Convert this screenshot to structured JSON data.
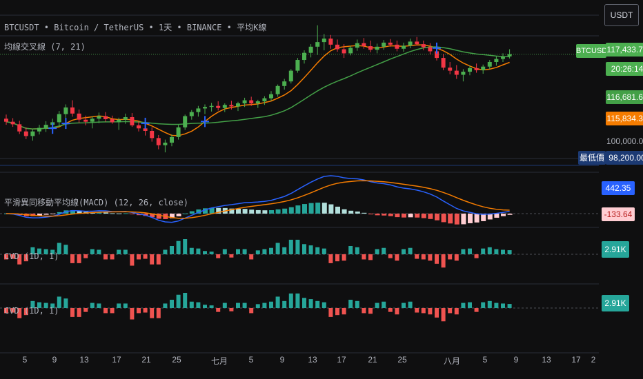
{
  "header": {
    "symbol_line": "BTCUSDT • Bitcoin / TetherUS • 1天 • BINANCE • 平均K線",
    "ma_label": "均線交叉線 (7, 21)",
    "macd_label": "平滑異同移動平均線(MACD) (12, 26, close)",
    "cvd1_label": "CVD (1D, 1)",
    "cvd2_label": "CVD (1D, 1)"
  },
  "right_scale": {
    "currency_button": "USDT",
    "symbol_tag": "BTCUSDT",
    "last_price": "117,433.72",
    "countdown": "20:26:14",
    "ma_green_value": "116,681.67",
    "ma_orange_value": "115,834.36",
    "partial_label": "100,000.00",
    "lowest_label": "最低價",
    "lowest_value": "98,200.00",
    "macd_value": "442.35",
    "hist_value": "-133.64",
    "cvd1_value": "2.91K",
    "cvd2_value": "2.91K"
  },
  "time_axis": {
    "ticks": [
      "5",
      "9",
      "13",
      "17",
      "21",
      "25",
      "七月",
      "5",
      "9",
      "13",
      "17",
      "21",
      "25",
      "八月",
      "5",
      "9",
      "13",
      "17",
      "2"
    ]
  },
  "colors": {
    "up": "#4caf50",
    "down": "#f23645",
    "ma_fast": "#f57c00",
    "ma_slow": "#43a047",
    "macd": "#2962ff",
    "signal": "#f57c00",
    "hist_up": "#26a69a",
    "hist_down": "#ef5350",
    "cross": "#2962ff",
    "lowest_bg": "#1c3a73"
  },
  "chart_data": {
    "type": "candlestick",
    "symbol": "BTCUSDT",
    "interval": "1天",
    "price_ohlc": [
      [
        104800,
        105600,
        103600,
        104200
      ],
      [
        104200,
        104900,
        103200,
        103700
      ],
      [
        103700,
        104400,
        101800,
        102300
      ],
      [
        102300,
        103100,
        100800,
        101400
      ],
      [
        101400,
        102700,
        100500,
        102300
      ],
      [
        102300,
        103600,
        101700,
        103000
      ],
      [
        103000,
        104300,
        102200,
        103600
      ],
      [
        103600,
        104800,
        102800,
        104100
      ],
      [
        104100,
        106300,
        103400,
        105700
      ],
      [
        105700,
        107600,
        104900,
        107000
      ],
      [
        107000,
        108400,
        105200,
        105800
      ],
      [
        105800,
        106600,
        104000,
        104600
      ],
      [
        104600,
        105400,
        103500,
        104200
      ],
      [
        104200,
        105300,
        102900,
        104800
      ],
      [
        104800,
        106000,
        103900,
        105300
      ],
      [
        105300,
        106100,
        104200,
        104700
      ],
      [
        104700,
        105400,
        103800,
        104100
      ],
      [
        104100,
        105000,
        102600,
        104600
      ],
      [
        104600,
        105800,
        103800,
        105100
      ],
      [
        105100,
        105900,
        103200,
        103500
      ],
      [
        103500,
        104200,
        102300,
        102900
      ],
      [
        102900,
        103700,
        101500,
        102400
      ],
      [
        102400,
        103100,
        100300,
        101000
      ],
      [
        101000,
        101600,
        98800,
        99600
      ],
      [
        99600,
        100700,
        98200,
        100100
      ],
      [
        100100,
        101700,
        99400,
        101200
      ],
      [
        101200,
        103600,
        100700,
        103100
      ],
      [
        103100,
        105600,
        102600,
        105300
      ],
      [
        105300,
        106500,
        104600,
        106100
      ],
      [
        106100,
        107300,
        105200,
        106800
      ],
      [
        106800,
        107600,
        105700,
        107100
      ],
      [
        107100,
        107900,
        106200,
        107300
      ],
      [
        107300,
        108200,
        106400,
        106900
      ],
      [
        106900,
        107800,
        106100,
        107500
      ],
      [
        107500,
        108300,
        106600,
        107200
      ],
      [
        107200,
        108100,
        106300,
        107800
      ],
      [
        107800,
        108900,
        107100,
        108400
      ],
      [
        108400,
        109100,
        107300,
        107800
      ],
      [
        107800,
        108500,
        106900,
        108200
      ],
      [
        108200,
        109200,
        107500,
        108800
      ],
      [
        108800,
        110200,
        108300,
        109600
      ],
      [
        109600,
        111500,
        109100,
        111200
      ],
      [
        111200,
        112600,
        110500,
        112100
      ],
      [
        112100,
        114500,
        111700,
        114200
      ],
      [
        114200,
        116700,
        113800,
        116300
      ],
      [
        116300,
        118200,
        115600,
        117700
      ],
      [
        117700,
        119400,
        116800,
        118900
      ],
      [
        118900,
        123100,
        117300,
        119800
      ],
      [
        119800,
        121400,
        118200,
        120500
      ],
      [
        120500,
        121200,
        118500,
        119300
      ],
      [
        119300,
        120300,
        117900,
        118400
      ],
      [
        118400,
        119400,
        116700,
        117600
      ],
      [
        117600,
        119100,
        117200,
        118700
      ],
      [
        118700,
        120300,
        118100,
        119600
      ],
      [
        119600,
        120600,
        118500,
        119000
      ],
      [
        119000,
        120100,
        117800,
        118300
      ],
      [
        118300,
        119500,
        117600,
        118900
      ],
      [
        118900,
        120200,
        118300,
        119700
      ],
      [
        119700,
        120400,
        118900,
        119300
      ],
      [
        119300,
        120100,
        118000,
        118500
      ],
      [
        118500,
        119700,
        117900,
        119100
      ],
      [
        119100,
        120500,
        118600,
        119900
      ],
      [
        119900,
        120800,
        119200,
        119400
      ],
      [
        119400,
        120100,
        118200,
        118800
      ],
      [
        118800,
        119600,
        117400,
        118000
      ],
      [
        118000,
        118900,
        116200,
        116700
      ],
      [
        116700,
        117500,
        114300,
        114800
      ],
      [
        114800,
        115900,
        113500,
        114200
      ],
      [
        114200,
        115300,
        112600,
        113400
      ],
      [
        113400,
        114500,
        112100,
        114000
      ],
      [
        114000,
        115200,
        113300,
        114700
      ],
      [
        114700,
        115600,
        113800,
        114300
      ],
      [
        114300,
        115400,
        113600,
        115000
      ],
      [
        115000,
        116300,
        114500,
        115900
      ],
      [
        115900,
        117000,
        115200,
        116500
      ],
      [
        116500,
        117600,
        115900,
        117000
      ],
      [
        117000,
        118400,
        116600,
        117433
      ]
    ],
    "ma_fast_last": 115834.36,
    "ma_slow_last": 116681.67,
    "lowest_price": 98200,
    "macd_last": 442.35,
    "hist_last": -133.64,
    "cvd_last_k": 2.91
  }
}
